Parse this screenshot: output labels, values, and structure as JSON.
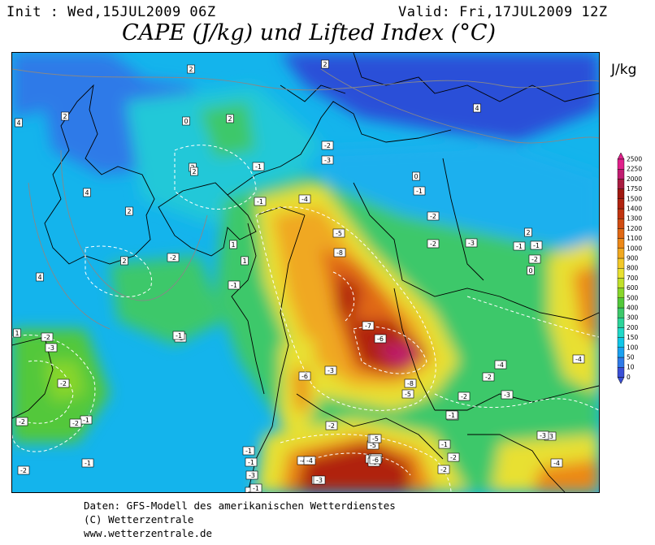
{
  "header": {
    "init": "Init : Wed,15JUL2009 06Z",
    "valid": "Valid: Fri,17JUL2009 12Z",
    "title": "CAPE (J/kg) und Lifted Index (°C)"
  },
  "colorbar": {
    "unit": "J/kg",
    "levels": [
      "0",
      "10",
      "50",
      "100",
      "150",
      "200",
      "300",
      "400",
      "500",
      "600",
      "700",
      "800",
      "900",
      "1000",
      "1100",
      "1200",
      "1300",
      "1400",
      "1500",
      "1750",
      "2000",
      "2250",
      "2500"
    ],
    "colors": [
      "#3a4fd6",
      "#2f7ae8",
      "#1aa0f0",
      "#10c6e8",
      "#20d8c8",
      "#2cd49a",
      "#3cc86a",
      "#52c83a",
      "#88d62a",
      "#c0e02a",
      "#e8e030",
      "#f2c828",
      "#f0a820",
      "#ec8818",
      "#e06814",
      "#d04c12",
      "#c03410",
      "#b02410",
      "#a01810",
      "#a81c40",
      "#c01c70",
      "#e0208a"
    ]
  },
  "footer": {
    "line1": "Daten: GFS-Modell des amerikanischen Wetterdienstes",
    "line2": "(C) Wetterzentrale",
    "line3": "www.wetterzentrale.de"
  },
  "li_labels": [
    "2",
    "2",
    "4",
    "4",
    "2",
    "0",
    "2",
    "-2",
    "-3",
    "2",
    "4",
    "-1",
    "-4",
    "0",
    "-1",
    "2",
    "-2",
    "1",
    "-5",
    "-2",
    "2",
    "-1",
    "-2",
    "1",
    "-8",
    "-3",
    "2",
    "4",
    "-2",
    "-1",
    "-7",
    "-6",
    "-3",
    "-4",
    "1",
    "-2",
    "-3",
    "-1",
    "-1",
    "-4",
    "-6",
    "-3",
    "-8",
    "-5",
    "-5",
    "-2",
    "-2",
    "-2",
    "-1",
    "-1",
    "-3",
    "-3",
    "-1",
    "-2",
    "-1",
    "-5",
    "-2",
    "-7",
    "-3",
    "-4",
    "-1",
    "-3",
    "-4",
    "-6",
    "-1",
    "-2",
    "-5",
    "-7",
    "-6",
    "-2",
    "-3",
    "-2",
    "-1",
    "-3",
    "-4",
    "0",
    "-1",
    "-1",
    "2",
    "-1",
    "-2",
    "-2"
  ]
}
